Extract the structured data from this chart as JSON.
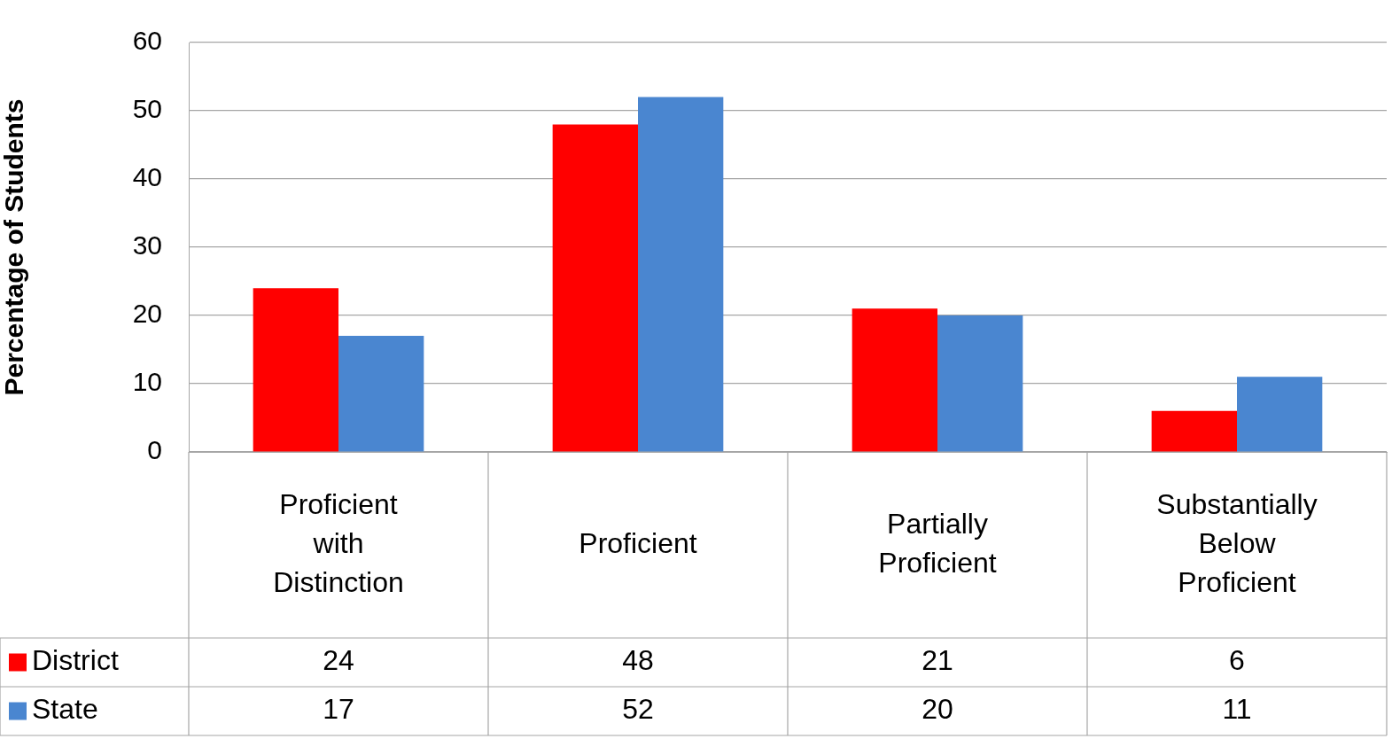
{
  "chart_data": {
    "type": "bar",
    "ylabel": "Percentage of Students",
    "categories": [
      "Proficient with Distinction",
      "Proficient",
      "Partially Proficient",
      "Substantially Below Proficient"
    ],
    "series": [
      {
        "name": "District",
        "color": "#ff0000",
        "values": [
          24,
          48,
          21,
          6
        ]
      },
      {
        "name": "State",
        "color": "#4a86d0",
        "values": [
          17,
          52,
          20,
          11
        ]
      }
    ],
    "ylim": [
      0,
      60
    ],
    "yticks": [
      0,
      10,
      20,
      30,
      40,
      50,
      60
    ],
    "grid": "y",
    "legend": "bottom",
    "data_labels": true
  }
}
